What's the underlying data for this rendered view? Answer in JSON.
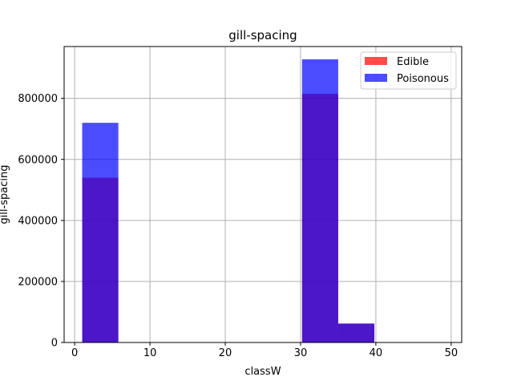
{
  "chart_data": {
    "type": "bar",
    "title": "gill-spacing",
    "xlabel": "classW",
    "ylabel": "gill-spacing",
    "xlim": [
      -1.4,
      51.4
    ],
    "ylim": [
      0,
      970000
    ],
    "xticks": [
      0,
      10,
      20,
      30,
      40,
      50
    ],
    "yticks": [
      0,
      200000,
      400000,
      600000,
      800000
    ],
    "grid": true,
    "legend_position": "top-right",
    "series": [
      {
        "name": "Edible",
        "color": "#ff0000",
        "opacity": 0.7,
        "bins": [
          {
            "x0": 1.0,
            "x1": 5.8,
            "value": 540000
          },
          {
            "x0": 30.2,
            "x1": 35.0,
            "value": 815000
          },
          {
            "x0": 35.0,
            "x1": 39.8,
            "value": 62000
          }
        ]
      },
      {
        "name": "Poisonous",
        "color": "#0000ff",
        "opacity": 0.7,
        "bins": [
          {
            "x0": 1.0,
            "x1": 5.8,
            "value": 720000
          },
          {
            "x0": 30.2,
            "x1": 35.0,
            "value": 928000
          },
          {
            "x0": 35.0,
            "x1": 39.8,
            "value": 62000
          }
        ]
      }
    ]
  }
}
